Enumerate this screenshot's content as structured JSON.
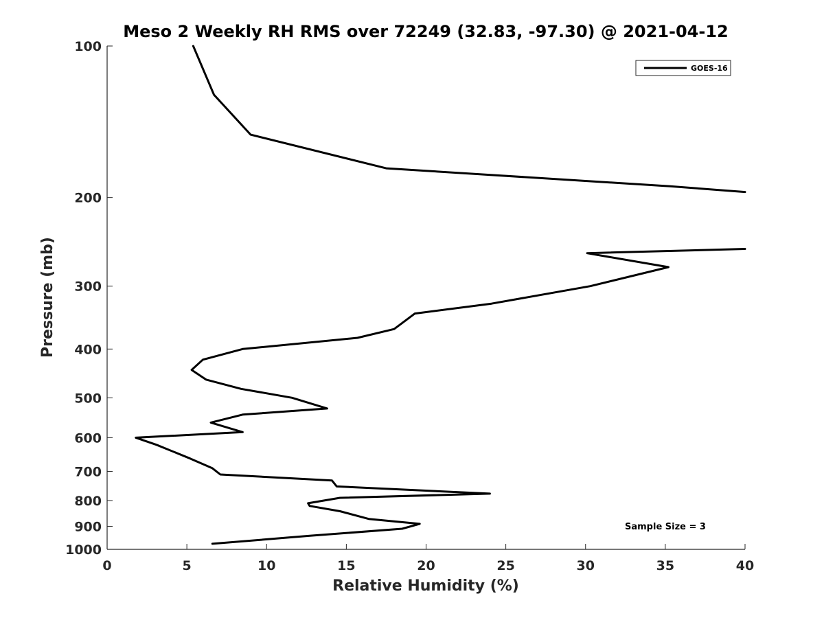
{
  "chart_data": {
    "type": "line",
    "title": "Meso 2 Weekly RH RMS over 72249 (32.83, -97.30) @ 2021-04-12",
    "xlabel": "Relative Humidity (%)",
    "ylabel": "Pressure (mb)",
    "xlim": [
      0,
      40
    ],
    "ylim": [
      1000,
      100
    ],
    "y_scale": "log",
    "y_reversed": true,
    "x_ticks": [
      0,
      5,
      10,
      15,
      20,
      25,
      30,
      35,
      40
    ],
    "y_ticks": [
      100,
      200,
      300,
      400,
      500,
      600,
      700,
      800,
      900,
      1000
    ],
    "grid": false,
    "legend_position": "top-right",
    "series": [
      {
        "name": "GOES-16",
        "color": "#000000",
        "x": [
          5.4,
          6.7,
          9.0,
          17.5,
          35.3,
          40.0
        ],
        "y": [
          100,
          125,
          150,
          175,
          190,
          195
        ]
      },
      {
        "name": "GOES-16",
        "color": "#000000",
        "x": [
          40.0,
          30.1,
          35.2,
          30.3,
          24.1,
          19.3,
          18.0,
          15.7,
          8.5,
          6.0,
          5.3,
          6.2,
          8.4,
          11.6,
          13.8,
          8.5,
          6.5,
          8.5,
          1.8,
          3.1,
          5.2,
          6.6,
          7.1,
          14.1,
          14.4,
          24.0,
          14.6,
          12.6,
          12.7,
          14.6,
          16.4,
          19.6,
          18.5,
          12.7,
          6.6
        ],
        "y": [
          253,
          258,
          275,
          300,
          325,
          340,
          365,
          380,
          400,
          420,
          440,
          460,
          480,
          500,
          525,
          540,
          560,
          585,
          600,
          620,
          660,
          690,
          710,
          730,
          750,
          775,
          790,
          810,
          820,
          840,
          870,
          890,
          910,
          940,
          975
        ]
      }
    ],
    "annotations": [
      "Sample Size = 3"
    ]
  }
}
